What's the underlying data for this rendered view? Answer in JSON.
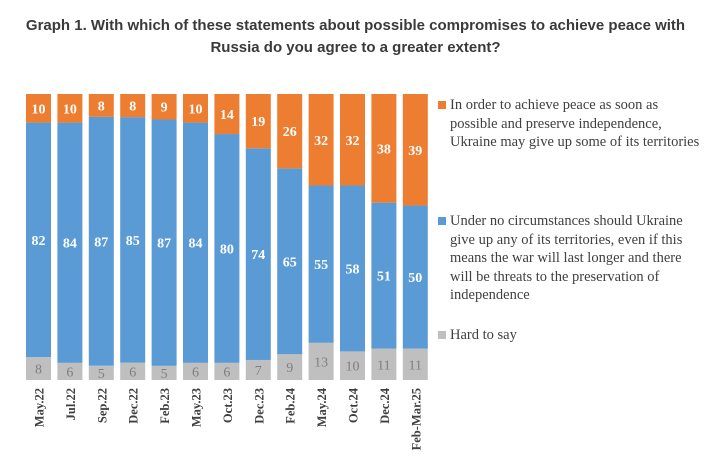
{
  "chart_data": {
    "type": "bar",
    "stacked": true,
    "title": "Graph 1. With which of these statements about possible compromises to achieve peace with Russia do you agree to a greater extent?",
    "categories": [
      "May.22",
      "Jul.22",
      "Sep.22",
      "Dec.22",
      "Feb.23",
      "May.23",
      "Oct.23",
      "Dec.23",
      "Feb.24",
      "May.24",
      "Oct.24",
      "Dec.24",
      "Feb-Mar.25"
    ],
    "ylim": [
      0,
      100
    ],
    "grid": false,
    "legend_position": "right",
    "series": [
      {
        "name": "Hard to say",
        "color": "#bfbfbf",
        "label_color": "#7f7f7f",
        "values": [
          8,
          6,
          5,
          6,
          5,
          6,
          6,
          7,
          9,
          13,
          10,
          11,
          11
        ]
      },
      {
        "name": "Under no circumstances should Ukraine give up any of its territories, even if this means the war will last longer and there will be threats to the preservation of independence",
        "color": "#5b9bd5",
        "label_color": "#ffffff",
        "values": [
          82,
          84,
          87,
          85,
          87,
          84,
          80,
          74,
          65,
          55,
          58,
          51,
          50
        ]
      },
      {
        "name": "In order to achieve peace as soon as possible and preserve independence, Ukraine may give up some of its territories",
        "color": "#ed7d31",
        "label_color": "#ffffff",
        "values": [
          10,
          10,
          8,
          8,
          9,
          10,
          14,
          19,
          26,
          32,
          32,
          38,
          39
        ]
      }
    ]
  }
}
